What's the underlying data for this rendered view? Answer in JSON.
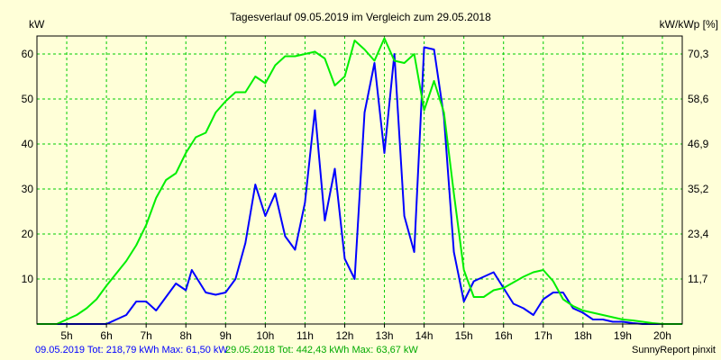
{
  "chart_data": {
    "type": "line",
    "title": "Tagesverlauf 09.05.2019 im Vergleich zum 29.05.2018",
    "ylabel_left": "kW",
    "ylabel_right": "kW/kWp [%]",
    "x_tick_labels": [
      "5h",
      "6h",
      "7h",
      "8h",
      "9h",
      "10h",
      "11h",
      "12h",
      "13h",
      "14h",
      "15h",
      "16h",
      "17h",
      "18h",
      "19h",
      "20h"
    ],
    "x_tick_hours": [
      5,
      6,
      7,
      8,
      9,
      10,
      11,
      12,
      13,
      14,
      15,
      16,
      17,
      18,
      19,
      20
    ],
    "xlim": [
      4.25,
      20.5
    ],
    "ylim": [
      0,
      64
    ],
    "y_ticks_left": [
      10,
      20,
      30,
      40,
      50,
      60
    ],
    "y_ticks_right": [
      "11,7",
      "23,4",
      "35,2",
      "46,9",
      "58,6",
      "70,3"
    ],
    "grid": true,
    "colors": {
      "blue": "#0000ff",
      "green": "#00ee00",
      "grid": "#00cc00",
      "frame": "#000000",
      "background": "#ffffd8"
    },
    "series": [
      {
        "name": "09.05.2019",
        "color": "#0000ff",
        "points": [
          [
            4.25,
            0
          ],
          [
            6.0,
            0
          ],
          [
            6.5,
            2
          ],
          [
            6.75,
            5
          ],
          [
            7.0,
            5
          ],
          [
            7.25,
            3
          ],
          [
            7.5,
            6
          ],
          [
            7.75,
            9
          ],
          [
            8.0,
            7.5
          ],
          [
            8.15,
            12
          ],
          [
            8.5,
            7
          ],
          [
            8.75,
            6.5
          ],
          [
            9.0,
            7
          ],
          [
            9.25,
            10
          ],
          [
            9.5,
            18
          ],
          [
            9.75,
            31
          ],
          [
            10.0,
            24
          ],
          [
            10.25,
            29
          ],
          [
            10.5,
            19.5
          ],
          [
            10.75,
            16.5
          ],
          [
            11.0,
            27
          ],
          [
            11.25,
            47.5
          ],
          [
            11.5,
            23
          ],
          [
            11.75,
            34.5
          ],
          [
            12.0,
            14.5
          ],
          [
            12.25,
            10
          ],
          [
            12.5,
            47
          ],
          [
            12.75,
            58
          ],
          [
            13.0,
            38
          ],
          [
            13.25,
            60
          ],
          [
            13.5,
            24
          ],
          [
            13.75,
            16
          ],
          [
            14.0,
            61.5
          ],
          [
            14.25,
            61
          ],
          [
            14.5,
            46
          ],
          [
            14.75,
            16
          ],
          [
            15.0,
            5
          ],
          [
            15.25,
            9.5
          ],
          [
            15.5,
            10.5
          ],
          [
            15.75,
            11.5
          ],
          [
            16.0,
            8
          ],
          [
            16.25,
            4.5
          ],
          [
            16.5,
            3.5
          ],
          [
            16.75,
            2
          ],
          [
            17.0,
            5.5
          ],
          [
            17.25,
            7
          ],
          [
            17.5,
            7
          ],
          [
            17.75,
            3.5
          ],
          [
            18.0,
            2.5
          ],
          [
            18.25,
            1
          ],
          [
            18.5,
            1
          ],
          [
            18.75,
            0.5
          ],
          [
            19.0,
            0.5
          ],
          [
            19.25,
            0.2
          ],
          [
            19.5,
            0
          ],
          [
            20.5,
            0
          ]
        ]
      },
      {
        "name": "29.05.2018",
        "color": "#00ee00",
        "points": [
          [
            4.25,
            0
          ],
          [
            4.75,
            0
          ],
          [
            5.25,
            2
          ],
          [
            5.5,
            3.5
          ],
          [
            5.75,
            5.5
          ],
          [
            6.0,
            8.5
          ],
          [
            6.5,
            14
          ],
          [
            6.75,
            17.5
          ],
          [
            7.0,
            22
          ],
          [
            7.25,
            28
          ],
          [
            7.5,
            32
          ],
          [
            7.75,
            33.5
          ],
          [
            8.0,
            38
          ],
          [
            8.25,
            41.5
          ],
          [
            8.5,
            42.5
          ],
          [
            8.75,
            47
          ],
          [
            9.0,
            49.5
          ],
          [
            9.25,
            51.5
          ],
          [
            9.5,
            51.5
          ],
          [
            9.75,
            55
          ],
          [
            10.0,
            53.5
          ],
          [
            10.25,
            57.5
          ],
          [
            10.5,
            59.5
          ],
          [
            10.75,
            59.5
          ],
          [
            11.0,
            60
          ],
          [
            11.25,
            60.5
          ],
          [
            11.5,
            59
          ],
          [
            11.75,
            53
          ],
          [
            12.0,
            55
          ],
          [
            12.25,
            63
          ],
          [
            12.5,
            61
          ],
          [
            12.75,
            58.5
          ],
          [
            13.0,
            63.5
          ],
          [
            13.25,
            58.5
          ],
          [
            13.5,
            58
          ],
          [
            13.75,
            60
          ],
          [
            14.0,
            47.5
          ],
          [
            14.25,
            54
          ],
          [
            14.5,
            47
          ],
          [
            14.75,
            29
          ],
          [
            15.0,
            12
          ],
          [
            15.25,
            6
          ],
          [
            15.5,
            6
          ],
          [
            15.75,
            7.5
          ],
          [
            16.0,
            8
          ],
          [
            16.5,
            10.5
          ],
          [
            16.75,
            11.5
          ],
          [
            17.0,
            12
          ],
          [
            17.25,
            9.5
          ],
          [
            17.5,
            5.5
          ],
          [
            17.75,
            4
          ],
          [
            18.0,
            3
          ],
          [
            18.25,
            2.5
          ],
          [
            18.5,
            2
          ],
          [
            18.75,
            1.5
          ],
          [
            19.0,
            1
          ],
          [
            19.25,
            0.8
          ],
          [
            19.5,
            0.5
          ],
          [
            19.75,
            0.2
          ],
          [
            20.0,
            0
          ],
          [
            20.5,
            0
          ]
        ]
      }
    ]
  },
  "footer": {
    "blue_text": "09.05.2019 Tot: 218,79 kWh Max: 61,50 kW",
    "green_text": "29.05.2018 Tot: 442,43 kWh Max: 63,67 kW",
    "brand": "SunnyReport pinxit"
  }
}
